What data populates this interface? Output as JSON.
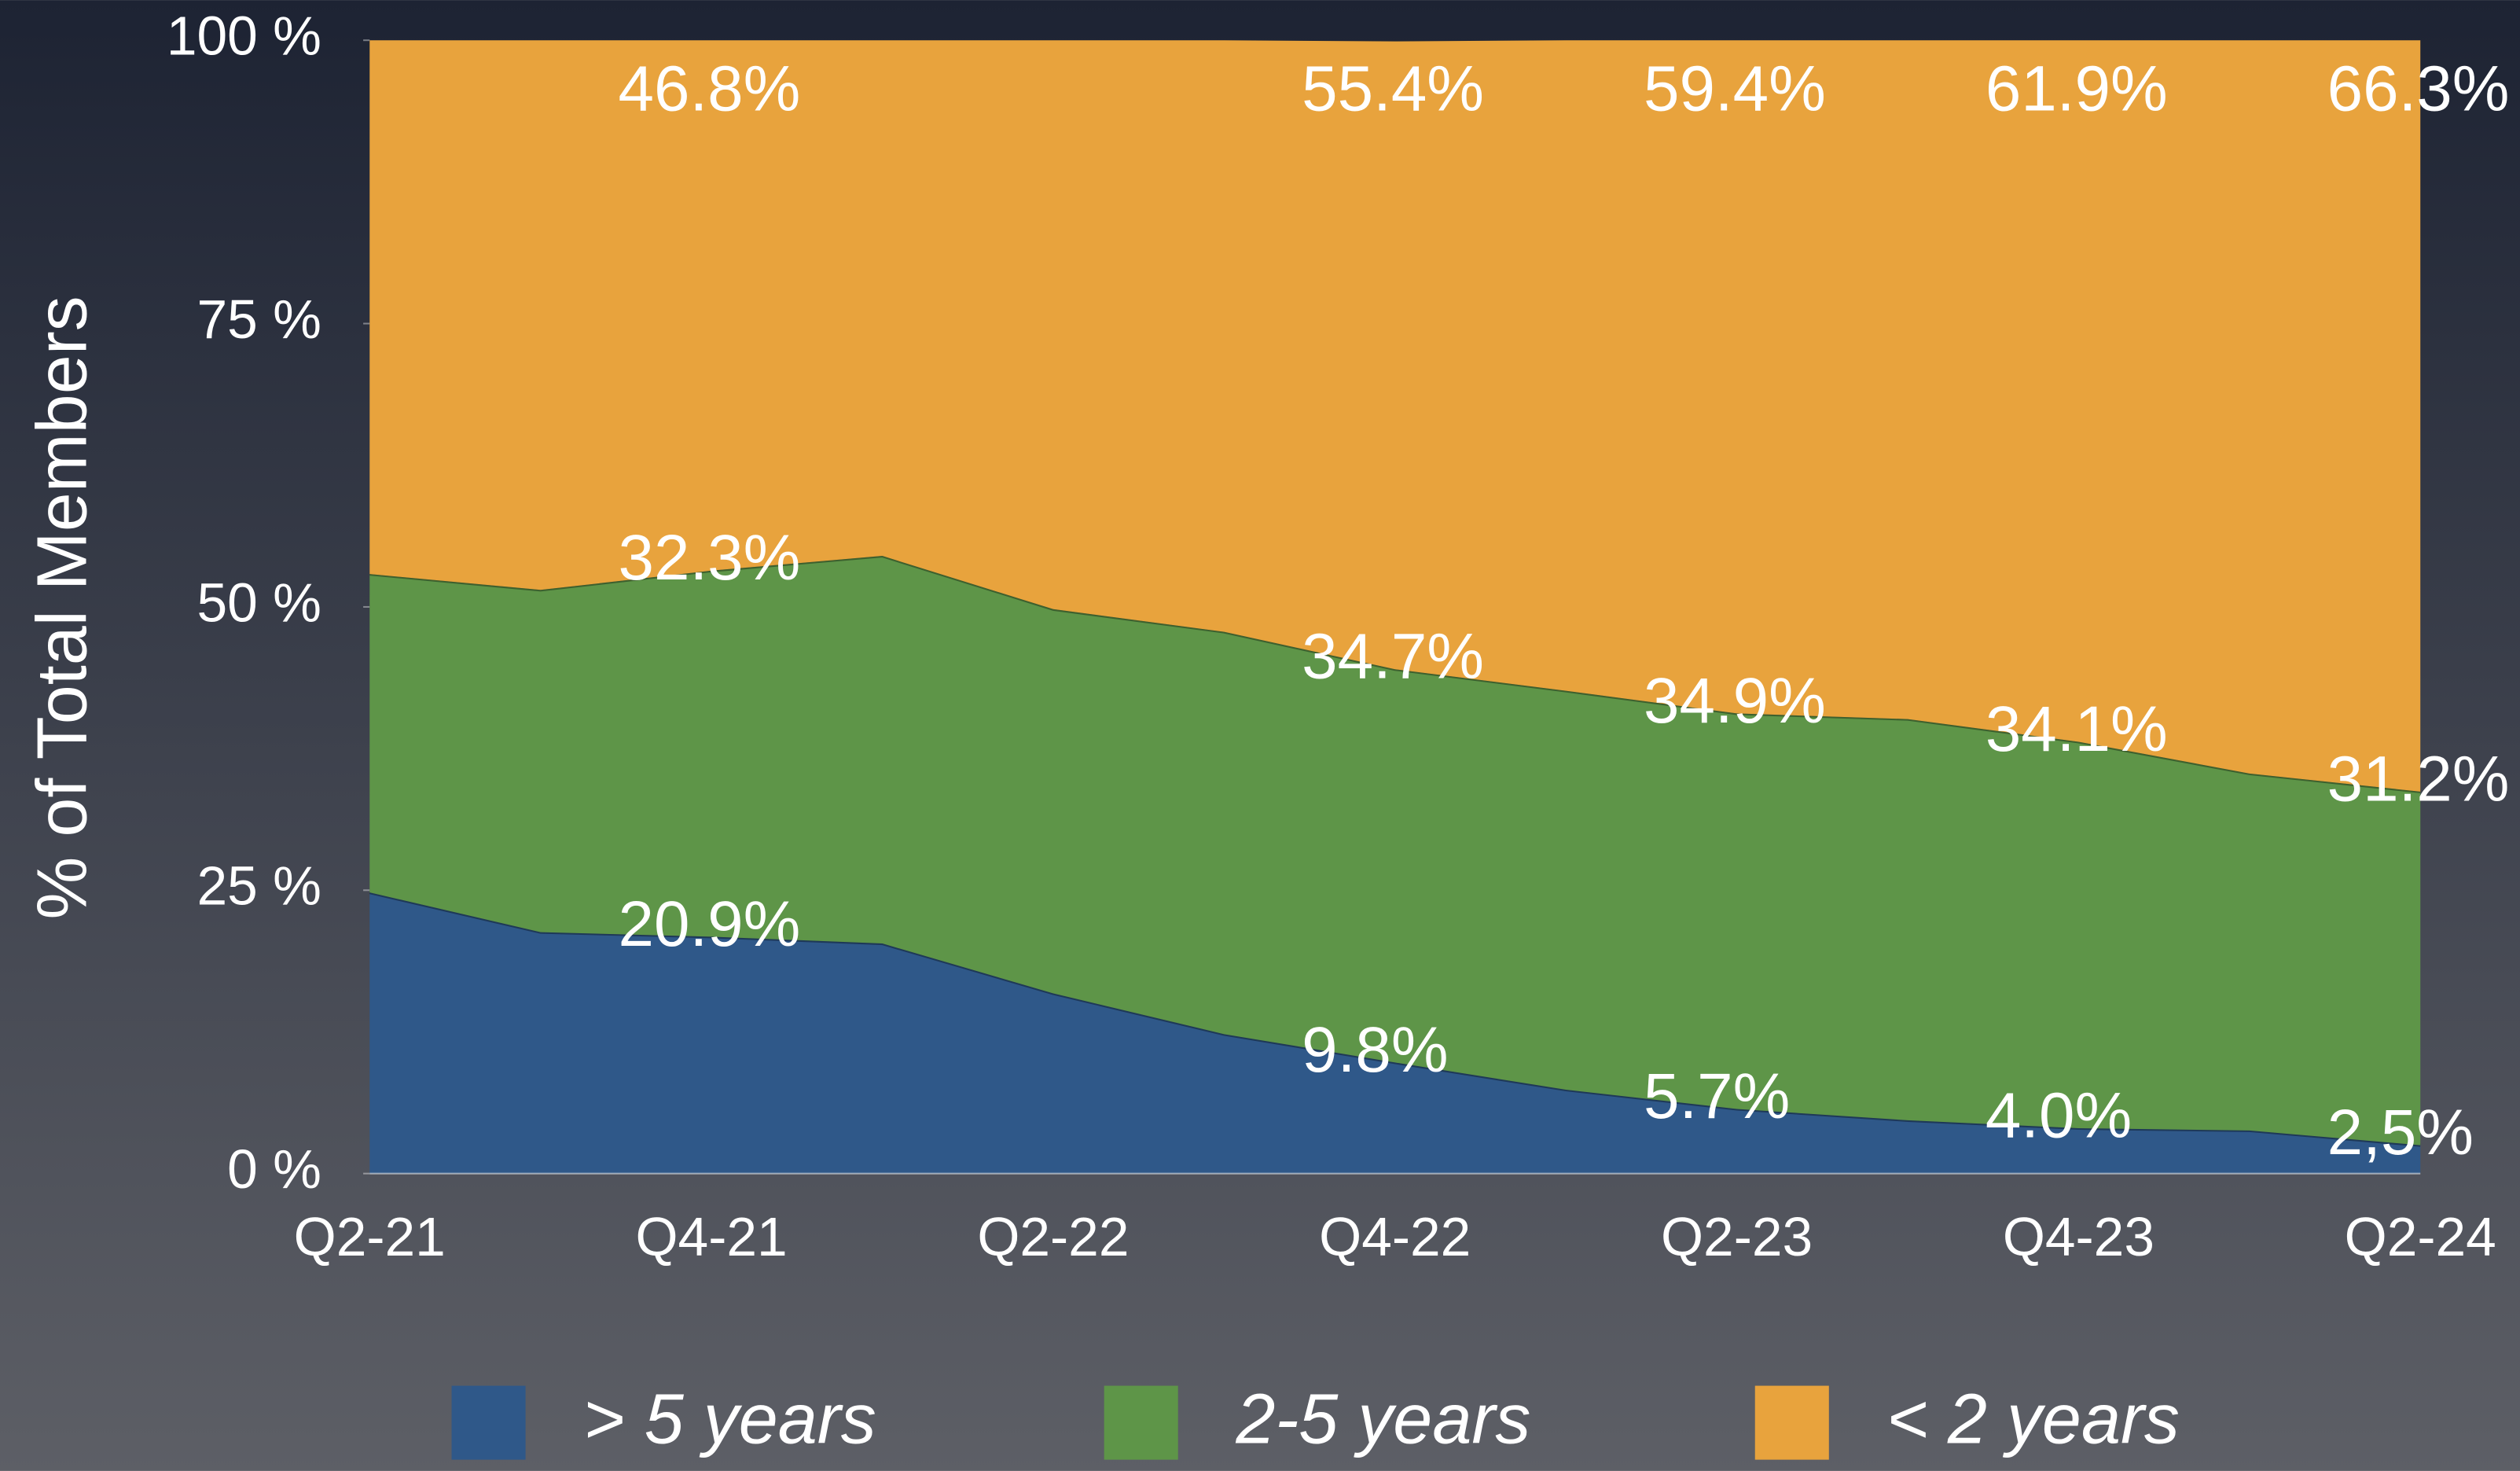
{
  "chart_data": {
    "type": "stacked_area",
    "categories": [
      "Q2-21",
      null,
      "Q4-21",
      null,
      "Q2-22",
      null,
      "Q4-22",
      null,
      "Q2-23",
      null,
      "Q4-23",
      null,
      "Q2-24"
    ],
    "series": [
      {
        "name": "> 5 years",
        "color": "#2f5889",
        "values": [
          24.8,
          21.3,
          20.9,
          20.3,
          15.9,
          12.3,
          9.8,
          7.4,
          5.7,
          4.7,
          4.0,
          3.8,
          2.5
        ],
        "value_labels": [
          null,
          null,
          "20.9%",
          null,
          null,
          null,
          "9.8%",
          null,
          "5.7%",
          null,
          "4.0%",
          null,
          "2,5%"
        ]
      },
      {
        "name": "2-5 years",
        "color": "#5e9548",
        "values": [
          28.1,
          30.2,
          32.3,
          34.2,
          33.9,
          35.5,
          34.7,
          35.2,
          34.9,
          35.4,
          34.1,
          31.5,
          31.2
        ],
        "value_labels": [
          null,
          null,
          "32.3%",
          null,
          null,
          null,
          "34.7%",
          null,
          "34.9%",
          null,
          "34.1%",
          null,
          "31.2%"
        ]
      },
      {
        "name": "< 2 years",
        "color": "#e8a33d",
        "values": [
          47.1,
          48.5,
          46.8,
          45.5,
          50.2,
          52.2,
          55.4,
          57.4,
          59.4,
          59.9,
          61.9,
          64.7,
          66.3
        ],
        "value_labels": [
          null,
          null,
          "46.8%",
          null,
          null,
          null,
          "55.4%",
          null,
          "59.4%",
          null,
          "61.9%",
          null,
          "66.3%"
        ]
      }
    ],
    "y_axis_label": "% of Total Members",
    "ylim": [
      0,
      100
    ],
    "yticks": [
      {
        "value": 0,
        "label": "0 %"
      },
      {
        "value": 25,
        "label": "25 %"
      },
      {
        "value": 50,
        "label": "50 %"
      },
      {
        "value": 75,
        "label": "75 %"
      },
      {
        "value": 100,
        "label": "100 %"
      }
    ],
    "legend": "bottom"
  }
}
